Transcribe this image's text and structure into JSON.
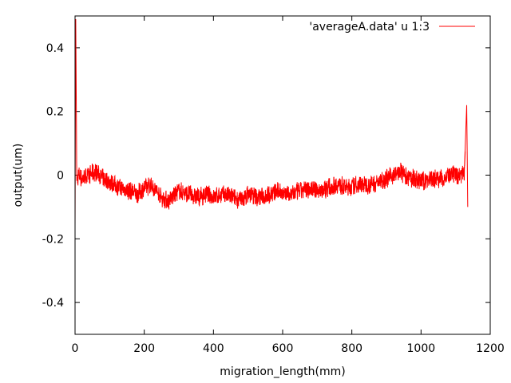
{
  "chart_data": {
    "type": "line",
    "xlabel": "migration_length(mm)",
    "ylabel": "output(um)",
    "xlim": [
      0,
      1200
    ],
    "ylim": [
      -0.5,
      0.5
    ],
    "x_ticks": [
      0,
      200,
      400,
      600,
      800,
      1000,
      1200
    ],
    "x_tick_labels": [
      "0",
      "200",
      "400",
      "600",
      "800",
      "1000",
      "1200"
    ],
    "y_ticks": [
      -0.4,
      -0.2,
      0,
      0.2,
      0.4
    ],
    "y_tick_labels": [
      "-0.4",
      "-0.2",
      "0",
      "0.2",
      "0.4"
    ],
    "grid": false,
    "legend_position": "top-right",
    "series": [
      {
        "name": "'averageA.data' u 1:3",
        "color": "#ff0000",
        "x": [
          0,
          2,
          5,
          10,
          20,
          40,
          60,
          80,
          100,
          130,
          160,
          180,
          200,
          220,
          250,
          270,
          300,
          330,
          360,
          380,
          400,
          430,
          460,
          480,
          500,
          530,
          560,
          590,
          620,
          650,
          680,
          700,
          730,
          760,
          790,
          820,
          850,
          880,
          900,
          920,
          940,
          960,
          980,
          1000,
          1030,
          1060,
          1090,
          1110,
          1125,
          1132,
          1135
        ],
        "y": [
          -0.16,
          0.49,
          -0.02,
          0.0,
          -0.01,
          0.0,
          0.01,
          -0.01,
          -0.02,
          -0.04,
          -0.05,
          -0.06,
          -0.04,
          -0.03,
          -0.07,
          -0.08,
          -0.05,
          -0.06,
          -0.07,
          -0.06,
          -0.07,
          -0.06,
          -0.07,
          -0.08,
          -0.06,
          -0.07,
          -0.06,
          -0.05,
          -0.06,
          -0.05,
          -0.04,
          -0.05,
          -0.04,
          -0.03,
          -0.04,
          -0.03,
          -0.03,
          -0.02,
          -0.01,
          0.0,
          0.01,
          -0.01,
          -0.01,
          -0.02,
          -0.01,
          -0.01,
          0.0,
          0.0,
          0.01,
          0.22,
          -0.1
        ]
      }
    ]
  }
}
